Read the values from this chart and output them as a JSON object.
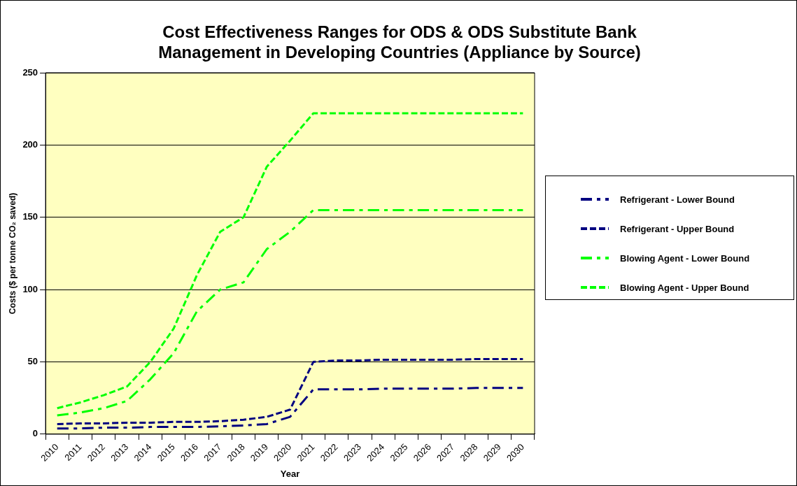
{
  "chart_data": {
    "type": "line",
    "title": "Cost Effectiveness Ranges for ODS & ODS Substitute Bank Management in Developing Countries (Appliance by Source)",
    "xlabel": "Year",
    "ylabel": "Costs ($ per tonne CO₂ saved)",
    "categories": [
      "2010",
      "2011",
      "2012",
      "2013",
      "2014",
      "2015",
      "2016",
      "2017",
      "2018",
      "2019",
      "2020",
      "2021",
      "2022",
      "2023",
      "2024",
      "2025",
      "2026",
      "2027",
      "2028",
      "2029",
      "2030"
    ],
    "ylim": [
      0,
      250
    ],
    "yticks": [
      0,
      50,
      100,
      150,
      200,
      250
    ],
    "grid": "y",
    "legend": "right",
    "marker": "none",
    "series": [
      {
        "name": "Refrigerant - Lower Bound",
        "color": "#000080",
        "line_style": "dashdot",
        "values": [
          4,
          4,
          4.5,
          4.5,
          5,
          5,
          5,
          5.5,
          6,
          7,
          12,
          31,
          31,
          31,
          31.5,
          31.5,
          31.5,
          31.5,
          32,
          32,
          32
        ]
      },
      {
        "name": "Refrigerant - Upper Bound",
        "color": "#000080",
        "line_style": "dashed",
        "values": [
          7,
          7.5,
          7.5,
          8,
          8,
          8.5,
          8.5,
          9,
          10,
          12,
          17,
          50,
          51,
          51,
          51.5,
          51.5,
          51.5,
          51.5,
          52,
          52,
          52
        ]
      },
      {
        "name": "Blowing Agent - Lower Bound",
        "color": "#00ff00",
        "line_style": "dashdot",
        "values": [
          13,
          15,
          18,
          23,
          38,
          56,
          85,
          100,
          105,
          128,
          140,
          155,
          155,
          155,
          155,
          155,
          155,
          155,
          155,
          155,
          155
        ]
      },
      {
        "name": "Blowing Agent - Upper Bound",
        "color": "#00ff00",
        "line_style": "dashed",
        "values": [
          18,
          22,
          27,
          33,
          50,
          73,
          110,
          140,
          150,
          185,
          203,
          222,
          222,
          222,
          222,
          222,
          222,
          222,
          222,
          222,
          222
        ]
      }
    ]
  }
}
